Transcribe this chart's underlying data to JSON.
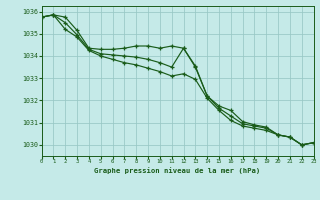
{
  "title": "Graphe pression niveau de la mer (hPa)",
  "bg_color": "#c5eae8",
  "grid_color": "#98c8c5",
  "line_color": "#1a5c1a",
  "text_color": "#1a5c1a",
  "xlim": [
    0,
    23
  ],
  "ylim": [
    1029.5,
    1036.25
  ],
  "yticks": [
    1030,
    1031,
    1032,
    1033,
    1034,
    1035,
    1036
  ],
  "xticks": [
    0,
    1,
    2,
    3,
    4,
    5,
    6,
    7,
    8,
    9,
    10,
    11,
    12,
    13,
    14,
    15,
    16,
    17,
    18,
    19,
    20,
    21,
    22,
    23
  ],
  "line1": [
    1035.75,
    1035.85,
    1035.75,
    1035.15,
    1034.35,
    1034.3,
    1034.3,
    1034.35,
    1034.45,
    1034.45,
    1034.35,
    1034.45,
    1034.35,
    1033.55,
    1032.2,
    1031.75,
    1031.55,
    1031.05,
    1030.9,
    1030.8,
    1030.45,
    1030.35,
    1030.0,
    1030.1
  ],
  "line2": [
    1035.75,
    1035.85,
    1035.5,
    1034.95,
    1034.3,
    1034.1,
    1034.05,
    1034.0,
    1033.95,
    1033.85,
    1033.7,
    1033.5,
    1034.35,
    1033.5,
    1032.2,
    1031.65,
    1031.3,
    1030.95,
    1030.85,
    1030.75,
    1030.45,
    1030.35,
    1030.0,
    1030.1
  ],
  "line3": [
    1035.75,
    1035.85,
    1035.2,
    1034.85,
    1034.25,
    1034.0,
    1033.85,
    1033.7,
    1033.6,
    1033.45,
    1033.3,
    1033.1,
    1033.2,
    1032.95,
    1032.1,
    1031.55,
    1031.1,
    1030.85,
    1030.75,
    1030.65,
    1030.45,
    1030.35,
    1030.0,
    1030.1
  ]
}
